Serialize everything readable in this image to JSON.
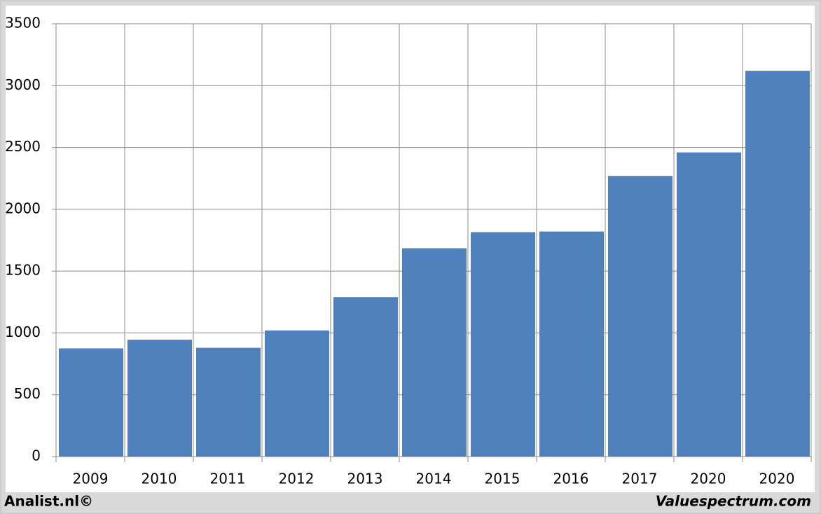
{
  "chart_data": {
    "type": "bar",
    "categories": [
      "2009",
      "2010",
      "2011",
      "2012",
      "2013",
      "2014",
      "2015",
      "2016",
      "2017",
      "2020",
      "2020"
    ],
    "values": [
      875,
      945,
      880,
      1020,
      1290,
      1685,
      1815,
      1820,
      2270,
      2460,
      3120
    ],
    "color": "#4f81bd",
    "ylim": [
      0,
      3500
    ],
    "yticks": [
      0,
      500,
      1000,
      1500,
      2000,
      2500,
      3000,
      3500
    ],
    "grid": true,
    "footer_left": "Analist.nl©",
    "footer_right": "Valuespectrum.com"
  }
}
